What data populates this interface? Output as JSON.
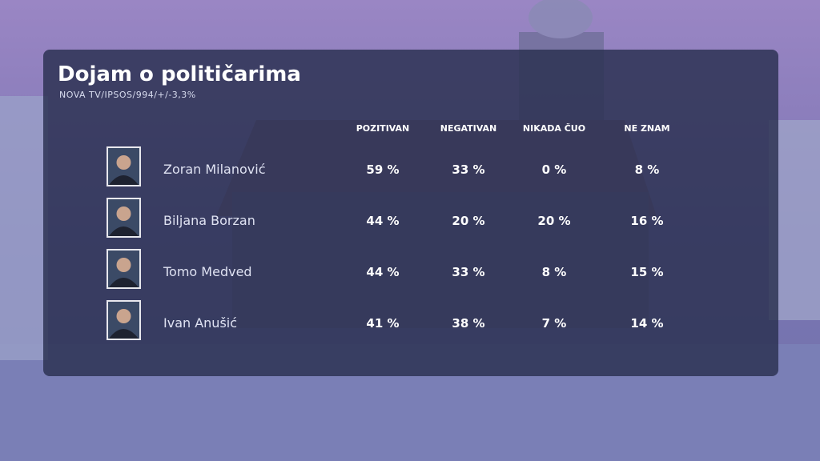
{
  "header": {
    "title": "Dojam o političarima",
    "subtitle": "NOVA TV/IPSOS/994/+/-3,3%"
  },
  "table": {
    "columns": [
      "POZITIVAN",
      "NEGATIVAN",
      "NIKADA ČUO",
      "NE ZNAM"
    ],
    "rows": [
      {
        "name": "Zoran Milanović",
        "cells": [
          "59 %",
          "33 %",
          "0 %",
          "8 %"
        ]
      },
      {
        "name": "Biljana Borzan",
        "cells": [
          "44 %",
          "20 %",
          "20 %",
          "16 %"
        ]
      },
      {
        "name": "Tomo Medved",
        "cells": [
          "44 %",
          "33 %",
          "8 %",
          "15 %"
        ]
      },
      {
        "name": "Ivan Anušić",
        "cells": [
          "41 %",
          "38 %",
          "7 %",
          "14 %"
        ]
      }
    ]
  }
}
